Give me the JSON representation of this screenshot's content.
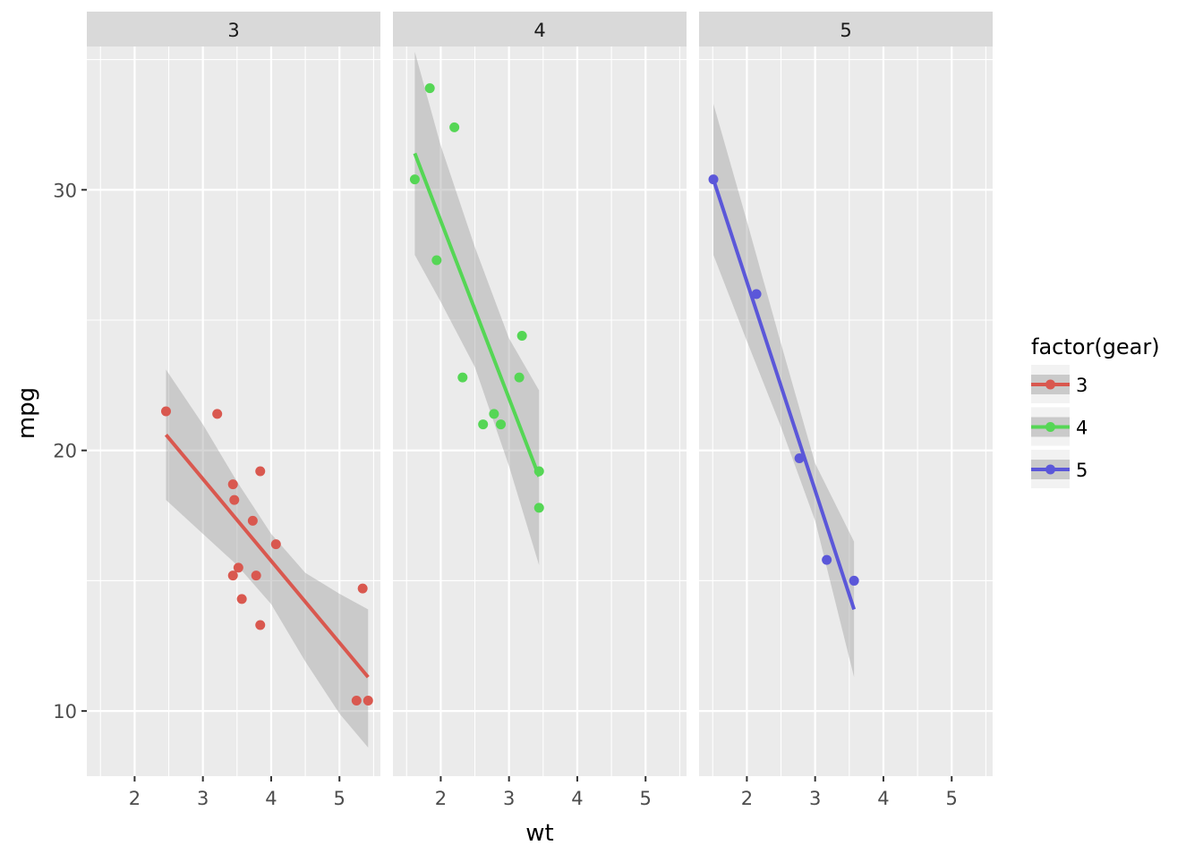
{
  "chart_data": {
    "type": "scatter",
    "xlabel": "wt",
    "ylabel": "mpg",
    "xlim": [
      1.3,
      5.6
    ],
    "ylim": [
      7.5,
      35.5
    ],
    "x_ticks": [
      2,
      3,
      4,
      5
    ],
    "x_tick_labels": [
      "2",
      "3",
      "4",
      "5"
    ],
    "y_ticks": [
      10,
      20,
      30
    ],
    "y_tick_labels": [
      "10",
      "20",
      "30"
    ],
    "grid": true,
    "legend": {
      "title": "factor(gear)",
      "placement": "right",
      "entries": [
        "3",
        "4",
        "5"
      ]
    },
    "colors": {
      "3": "#d9584f",
      "4": "#55d655",
      "5": "#5b57d9",
      "panel_bg": "#ebebeb",
      "strip_bg": "#d9d9d9",
      "ribbon": "#999999"
    },
    "facets": [
      {
        "strip": "3",
        "points": [
          [
            2.46,
            21.5
          ],
          [
            3.21,
            21.4
          ],
          [
            3.44,
            18.7
          ],
          [
            3.46,
            18.1
          ],
          [
            3.73,
            17.3
          ],
          [
            4.07,
            16.4
          ],
          [
            3.52,
            15.5
          ],
          [
            3.44,
            15.2
          ],
          [
            3.78,
            15.2
          ],
          [
            3.57,
            14.3
          ],
          [
            3.84,
            13.3
          ],
          [
            3.84,
            19.2
          ],
          [
            5.25,
            10.4
          ],
          [
            5.42,
            10.4
          ],
          [
            5.34,
            14.7
          ]
        ],
        "fit": [
          [
            2.46,
            20.6
          ],
          [
            5.42,
            11.3
          ]
        ],
        "ribbon": [
          [
            2.46,
            23.1,
            18.1
          ],
          [
            3.0,
            21.0,
            16.8
          ],
          [
            3.5,
            18.8,
            15.6
          ],
          [
            4.0,
            16.8,
            14.1
          ],
          [
            4.5,
            15.3,
            11.9
          ],
          [
            5.0,
            14.5,
            9.9
          ],
          [
            5.42,
            13.9,
            8.6
          ]
        ]
      },
      {
        "strip": "4",
        "points": [
          [
            1.62,
            30.4
          ],
          [
            1.84,
            33.9
          ],
          [
            2.2,
            32.4
          ],
          [
            1.94,
            27.3
          ],
          [
            2.32,
            22.8
          ],
          [
            2.62,
            21.0
          ],
          [
            2.78,
            21.4
          ],
          [
            2.88,
            21.0
          ],
          [
            3.15,
            22.8
          ],
          [
            3.19,
            24.4
          ],
          [
            3.44,
            19.2
          ],
          [
            3.44,
            17.8
          ]
        ],
        "fit": [
          [
            1.62,
            31.4
          ],
          [
            3.44,
            19.0
          ]
        ],
        "ribbon": [
          [
            1.62,
            35.3,
            27.5
          ],
          [
            2.0,
            31.7,
            25.7
          ],
          [
            2.5,
            27.8,
            23.2
          ],
          [
            3.0,
            24.3,
            19.4
          ],
          [
            3.44,
            22.3,
            15.6
          ]
        ]
      },
      {
        "strip": "5",
        "points": [
          [
            1.51,
            30.4
          ],
          [
            2.14,
            26.0
          ],
          [
            2.77,
            19.7
          ],
          [
            3.17,
            15.8
          ],
          [
            3.57,
            15.0
          ]
        ],
        "fit": [
          [
            1.51,
            30.4
          ],
          [
            3.57,
            13.9
          ]
        ],
        "ribbon": [
          [
            1.51,
            33.3,
            27.5
          ],
          [
            2.0,
            28.8,
            24.2
          ],
          [
            2.5,
            24.1,
            20.9
          ],
          [
            3.0,
            19.5,
            17.3
          ],
          [
            3.57,
            16.5,
            11.3
          ]
        ]
      }
    ]
  }
}
